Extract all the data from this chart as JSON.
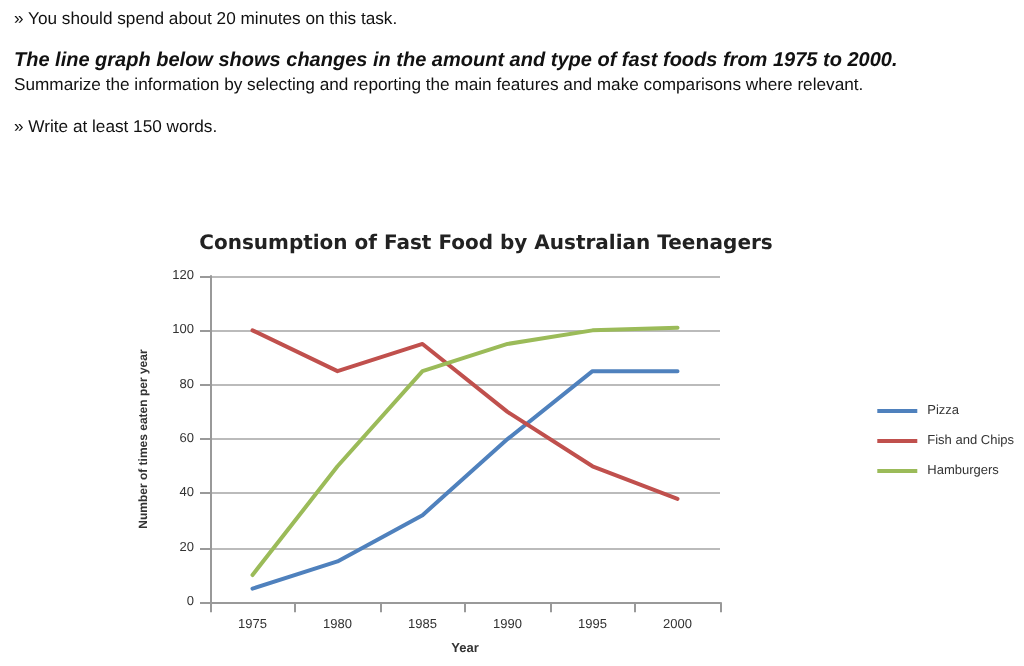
{
  "chart_data": {
    "type": "line",
    "title": "Consumption of Fast Food by Australian Teenagers",
    "annotations": [
      "» You should spend about 20 minutes on this task.",
      "The line graph below shows changes in the amount and type of fast foods from 1975 to 2000.",
      "Summarize the information by selecting and reporting the main features and make comparisons where relevant.",
      "» Write at least 150 words."
    ],
    "xlabel": "Year",
    "ylabel": "Number of times eaten per year",
    "categories": [
      "1975",
      "1980",
      "1985",
      "1990",
      "1995",
      "2000"
    ],
    "series": [
      {
        "name": "Pizza",
        "color": "#4f81bd",
        "values": [
          5,
          15,
          32,
          60,
          85,
          85
        ]
      },
      {
        "name": "Fish and Chips",
        "color": "#c0504d",
        "values": [
          100,
          85,
          95,
          70,
          50,
          38
        ]
      },
      {
        "name": "Hamburgers",
        "color": "#9bbb59",
        "values": [
          10,
          50,
          85,
          95,
          100,
          101
        ]
      }
    ],
    "ylim": [
      0,
      120
    ],
    "yticks": [
      0,
      20,
      40,
      60,
      80,
      100,
      120
    ],
    "grid": "y",
    "legend": "right",
    "marker": "none",
    "line_style": "solid"
  }
}
